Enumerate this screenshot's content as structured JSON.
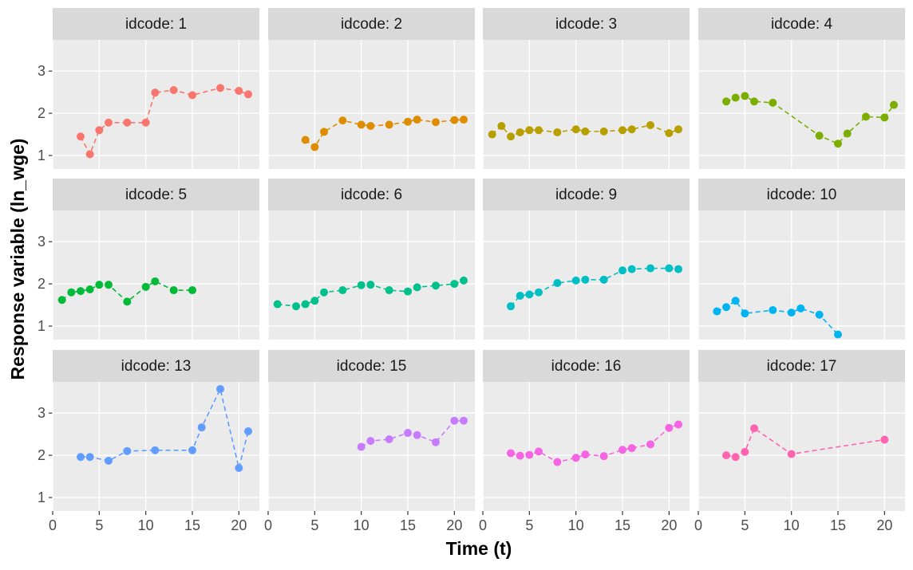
{
  "chart_data": {
    "type": "line",
    "xlabel": "Time (t)",
    "ylabel": "Response variable (ln_wge)",
    "xlim": [
      0,
      22.2
    ],
    "ylim": [
      0.68,
      3.74
    ],
    "xticks": [
      0,
      5,
      10,
      15,
      20
    ],
    "yticks": [
      1,
      2,
      3
    ],
    "grid": true,
    "panels": [
      {
        "title": "idcode: 1",
        "color": "#F8766D",
        "x": [
          3,
          4,
          5,
          6,
          8,
          10,
          11,
          13,
          15,
          18,
          20,
          21
        ],
        "values": [
          1.45,
          1.03,
          1.6,
          1.78,
          1.78,
          1.78,
          2.49,
          2.55,
          2.43,
          2.6,
          2.53,
          2.45
        ]
      },
      {
        "title": "idcode: 2",
        "color": "#DE8C00",
        "x": [
          4,
          5,
          6,
          8,
          10,
          11,
          13,
          15,
          16,
          18,
          20,
          21
        ],
        "values": [
          1.37,
          1.2,
          1.56,
          1.83,
          1.73,
          1.7,
          1.73,
          1.8,
          1.85,
          1.79,
          1.84,
          1.85
        ]
      },
      {
        "title": "idcode: 3",
        "color": "#B79F00",
        "x": [
          1,
          2,
          3,
          4,
          5,
          6,
          8,
          10,
          11,
          13,
          15,
          16,
          18,
          20,
          21
        ],
        "values": [
          1.5,
          1.7,
          1.45,
          1.55,
          1.6,
          1.6,
          1.55,
          1.62,
          1.57,
          1.57,
          1.6,
          1.62,
          1.72,
          1.53,
          1.62
        ]
      },
      {
        "title": "idcode: 4",
        "color": "#7CAE00",
        "x": [
          3,
          4,
          5,
          6,
          8,
          13,
          15,
          16,
          18,
          20,
          21
        ],
        "values": [
          2.28,
          2.37,
          2.41,
          2.28,
          2.25,
          1.47,
          1.28,
          1.52,
          1.92,
          1.9,
          2.2
        ]
      },
      {
        "title": "idcode: 5",
        "color": "#00BA38",
        "x": [
          1,
          2,
          3,
          4,
          5,
          6,
          8,
          10,
          11,
          13,
          15
        ],
        "values": [
          1.62,
          1.8,
          1.83,
          1.87,
          1.98,
          1.98,
          1.58,
          1.93,
          2.06,
          1.85,
          1.85
        ]
      },
      {
        "title": "idcode: 6",
        "color": "#00C08B",
        "x": [
          1,
          3,
          4,
          5,
          6,
          8,
          10,
          11,
          13,
          15,
          16,
          18,
          20,
          21
        ],
        "values": [
          1.52,
          1.47,
          1.52,
          1.6,
          1.8,
          1.85,
          1.97,
          1.98,
          1.85,
          1.82,
          1.92,
          1.96,
          2.0,
          2.08
        ]
      },
      {
        "title": "idcode: 9",
        "color": "#00BFC4",
        "x": [
          3,
          4,
          5,
          6,
          8,
          10,
          11,
          13,
          15,
          16,
          18,
          20,
          21
        ],
        "values": [
          1.47,
          1.72,
          1.75,
          1.8,
          2.02,
          2.08,
          2.1,
          2.1,
          2.32,
          2.35,
          2.37,
          2.37,
          2.35
        ]
      },
      {
        "title": "idcode: 10",
        "color": "#00B4F0",
        "x": [
          2,
          3,
          4,
          5,
          8,
          10,
          11,
          13,
          15
        ],
        "values": [
          1.35,
          1.45,
          1.6,
          1.3,
          1.38,
          1.32,
          1.42,
          1.27,
          0.8
        ]
      },
      {
        "title": "idcode: 13",
        "color": "#619CFF",
        "x": [
          3,
          4,
          6,
          8,
          11,
          15,
          16,
          18,
          20,
          21
        ],
        "values": [
          1.96,
          1.96,
          1.87,
          2.1,
          2.12,
          2.12,
          2.66,
          3.57,
          1.7,
          2.57
        ]
      },
      {
        "title": "idcode: 15",
        "color": "#C77CFF",
        "x": [
          10,
          11,
          13,
          15,
          16,
          18,
          20,
          21
        ],
        "values": [
          2.2,
          2.34,
          2.38,
          2.53,
          2.48,
          2.31,
          2.82,
          2.82
        ]
      },
      {
        "title": "idcode: 16",
        "color": "#F564E3",
        "x": [
          3,
          4,
          5,
          6,
          8,
          10,
          11,
          13,
          15,
          16,
          18,
          20,
          21
        ],
        "values": [
          2.05,
          1.99,
          2.01,
          2.09,
          1.84,
          1.94,
          2.02,
          1.98,
          2.13,
          2.17,
          2.26,
          2.65,
          2.73
        ]
      },
      {
        "title": "idcode: 17",
        "color": "#FF64B0",
        "x": [
          3,
          4,
          5,
          6,
          10,
          20
        ],
        "values": [
          2.0,
          1.96,
          2.08,
          2.64,
          2.03,
          2.37
        ]
      }
    ]
  }
}
